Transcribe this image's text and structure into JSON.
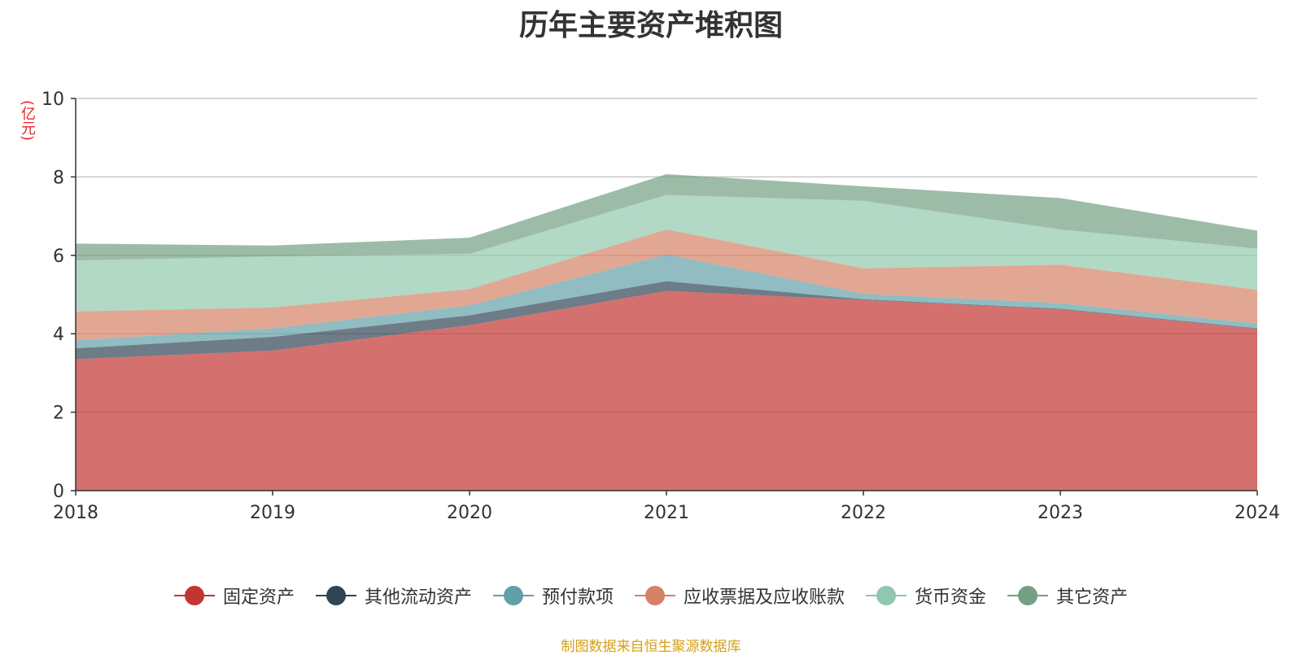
{
  "chart_data": {
    "type": "area",
    "stacked": true,
    "title": "历年主要资产堆积图",
    "unit_label": "(亿元)",
    "x": [
      "2018",
      "2019",
      "2020",
      "2021",
      "2022",
      "2023",
      "2024"
    ],
    "ylim": [
      0,
      10
    ],
    "yticks": [
      0,
      2,
      4,
      6,
      8,
      10
    ],
    "grid": true,
    "legend_position": "bottom",
    "series": [
      {
        "name": "固定资产",
        "color": "#c23531",
        "values": [
          3.35,
          3.57,
          4.22,
          5.09,
          4.86,
          4.62,
          4.12
        ]
      },
      {
        "name": "其他流动资产",
        "color": "#2f4554",
        "values": [
          0.28,
          0.35,
          0.25,
          0.25,
          0.02,
          0.02,
          0.02
        ]
      },
      {
        "name": "预付款项",
        "color": "#61a0a8",
        "values": [
          0.2,
          0.22,
          0.25,
          0.68,
          0.14,
          0.14,
          0.12
        ]
      },
      {
        "name": "应收票据及应收账款",
        "color": "#d48265",
        "values": [
          0.74,
          0.53,
          0.42,
          0.64,
          0.65,
          0.98,
          0.86
        ]
      },
      {
        "name": "货币资金",
        "color": "#91c7ae",
        "values": [
          1.3,
          1.3,
          0.9,
          0.88,
          1.72,
          0.9,
          1.05
        ]
      },
      {
        "name": "其它资产",
        "color": "#749f83",
        "values": [
          0.43,
          0.28,
          0.41,
          0.53,
          0.37,
          0.8,
          0.46
        ]
      }
    ]
  },
  "source_note": "制图数据来自恒生聚源数据库"
}
